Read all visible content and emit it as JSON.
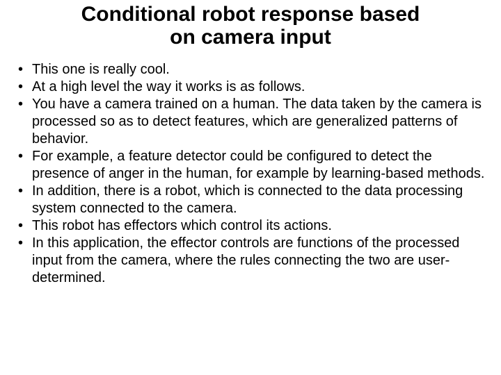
{
  "title_line1": "Conditional robot response based",
  "title_line2": "on camera input",
  "title_fontsize": 30,
  "body_fontsize": 20,
  "text_color": "#000000",
  "background_color": "#ffffff",
  "bullets": [
    "This one is really cool.",
    "At a high level the way it works is as follows.",
    "You have a camera trained on a human. The data taken by the camera is processed so as to detect features, which are generalized patterns of behavior.",
    "For example, a feature detector could be configured to detect the presence of anger in the human, for example by learning-based methods.",
    "In addition, there is a robot, which is connected to the data processing system connected to the camera.",
    "This robot has effectors which control its actions.",
    "In this application, the effector controls are functions of the processed input from the camera, where the rules connecting the two are user-determined."
  ]
}
